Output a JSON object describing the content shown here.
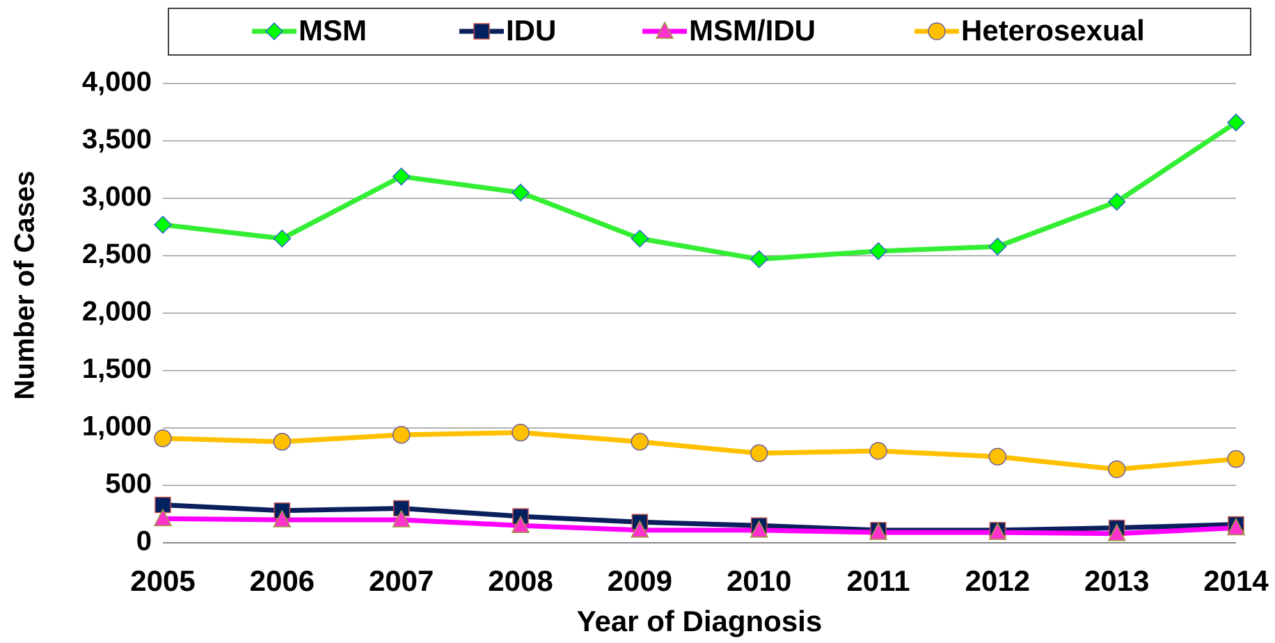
{
  "chart_data": {
    "type": "line",
    "x_label": "Year of Diagnosis",
    "y_label": "Number of Cases",
    "categories": [
      "2005",
      "2006",
      "2007",
      "2008",
      "2009",
      "2010",
      "2011",
      "2012",
      "2013",
      "2014"
    ],
    "series": [
      {
        "name": "MSM",
        "color": "#33ee33",
        "marker": "diamond",
        "marker_color": "#00ff00",
        "values": [
          2770,
          2650,
          3190,
          3050,
          2650,
          2470,
          2540,
          2580,
          2970,
          3660
        ]
      },
      {
        "name": "IDU",
        "color": "#0a1f5c",
        "marker": "square",
        "marker_color": "#002060",
        "values": [
          330,
          280,
          300,
          230,
          180,
          150,
          110,
          110,
          130,
          160
        ]
      },
      {
        "name": "MSM/IDU",
        "color": "#ff00ff",
        "marker": "triangle",
        "marker_color": "#ff33cc",
        "values": [
          210,
          200,
          200,
          150,
          110,
          110,
          90,
          90,
          80,
          130
        ]
      },
      {
        "name": "Heterosexual",
        "color": "#ffc000",
        "marker": "circle",
        "marker_color": "#ffc000",
        "values": [
          910,
          880,
          940,
          960,
          880,
          780,
          800,
          750,
          640,
          730
        ]
      }
    ],
    "ylim": [
      0,
      4000
    ],
    "yticks": [
      0,
      500,
      {
        "value": 1000,
        "label": "1,000"
      },
      {
        "value": 1500,
        "label": "1,500"
      },
      {
        "value": 2000,
        "label": "2,000"
      },
      {
        "value": 2500,
        "label": "2,500"
      },
      {
        "value": 3000,
        "label": "3,000"
      },
      {
        "value": 3500,
        "label": "3,500"
      },
      {
        "value": 4000,
        "label": "4,000"
      }
    ],
    "grid": true,
    "legend": "top"
  }
}
